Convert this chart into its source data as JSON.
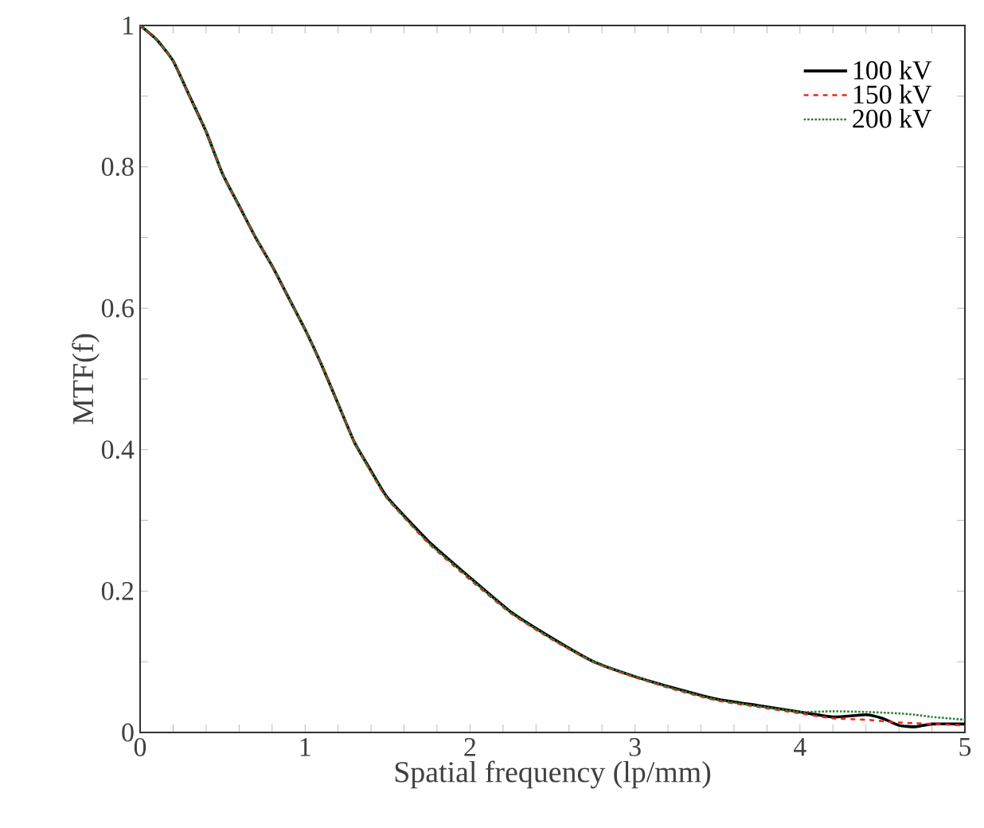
{
  "chart_data": {
    "type": "line",
    "xlabel": "Spatial frequency (lp/mm)",
    "ylabel": "MTF(f)",
    "xlim": [
      0,
      5
    ],
    "ylim": [
      0,
      1
    ],
    "xticks": [
      0,
      {
        "value": 0.2,
        "label": null
      },
      {
        "value": 0.4,
        "label": null
      },
      {
        "value": 0.6,
        "label": null
      },
      {
        "value": 0.8,
        "label": null
      },
      1,
      {
        "value": 1.2,
        "label": null
      },
      {
        "value": 1.4,
        "label": null
      },
      {
        "value": 1.6,
        "label": null
      },
      {
        "value": 1.8,
        "label": null
      },
      2,
      {
        "value": 2.2,
        "label": null
      },
      {
        "value": 2.4,
        "label": null
      },
      {
        "value": 2.6,
        "label": null
      },
      {
        "value": 2.8,
        "label": null
      },
      3,
      {
        "value": 3.2,
        "label": null
      },
      {
        "value": 3.4,
        "label": null
      },
      {
        "value": 3.6,
        "label": null
      },
      {
        "value": 3.8,
        "label": null
      },
      4,
      {
        "value": 4.2,
        "label": null
      },
      {
        "value": 4.4,
        "label": null
      },
      {
        "value": 4.6,
        "label": null
      },
      {
        "value": 4.8,
        "label": null
      },
      5
    ],
    "yticks": [
      0,
      {
        "value": 0.1,
        "label": null
      },
      0.2,
      {
        "value": 0.3,
        "label": null
      },
      0.4,
      {
        "value": 0.5,
        "label": null
      },
      0.6,
      {
        "value": 0.7,
        "label": null
      },
      0.8,
      {
        "value": 0.9,
        "label": null
      },
      1
    ],
    "x": [
      0,
      0.1,
      0.2,
      0.3,
      0.4,
      0.5,
      0.6,
      0.7,
      0.8,
      0.9,
      1.0,
      1.1,
      1.2,
      1.3,
      1.4,
      1.5,
      1.75,
      2.0,
      2.25,
      2.5,
      2.75,
      3.0,
      3.25,
      3.5,
      3.75,
      4.0,
      4.2,
      4.4,
      4.5,
      4.6,
      4.7,
      4.8,
      5.0
    ],
    "series": [
      {
        "name": "100 kV",
        "color": "#000000",
        "line_style": "solid",
        "values": [
          1,
          0.98,
          0.95,
          0.9,
          0.85,
          0.79,
          0.745,
          0.7,
          0.66,
          0.615,
          0.57,
          0.52,
          0.465,
          0.41,
          0.37,
          0.332,
          0.27,
          0.219,
          0.17,
          0.133,
          0.1,
          0.079,
          0.062,
          0.047,
          0.038,
          0.029,
          0.022,
          0.025,
          0.02,
          0.01,
          0.008,
          0.012,
          0.012
        ]
      },
      {
        "name": "150 kV",
        "color": "#e8281e",
        "line_style": "dashed",
        "values": [
          1,
          0.98,
          0.95,
          0.9,
          0.85,
          0.79,
          0.745,
          0.7,
          0.66,
          0.615,
          0.57,
          0.52,
          0.465,
          0.41,
          0.368,
          0.33,
          0.267,
          0.216,
          0.168,
          0.131,
          0.099,
          0.078,
          0.06,
          0.045,
          0.036,
          0.027,
          0.02,
          0.018,
          0.016,
          0.014,
          0.013,
          0.012,
          0.01
        ]
      },
      {
        "name": "200 kV",
        "color": "#2e7d32",
        "line_style": "dotted",
        "values": [
          1,
          0.98,
          0.95,
          0.9,
          0.85,
          0.79,
          0.745,
          0.7,
          0.66,
          0.615,
          0.57,
          0.52,
          0.465,
          0.41,
          0.369,
          0.331,
          0.268,
          0.218,
          0.169,
          0.132,
          0.1,
          0.079,
          0.061,
          0.046,
          0.037,
          0.029,
          0.03,
          0.029,
          0.028,
          0.027,
          0.025,
          0.022,
          0.018
        ]
      }
    ],
    "legend": "top right",
    "grid": false
  }
}
